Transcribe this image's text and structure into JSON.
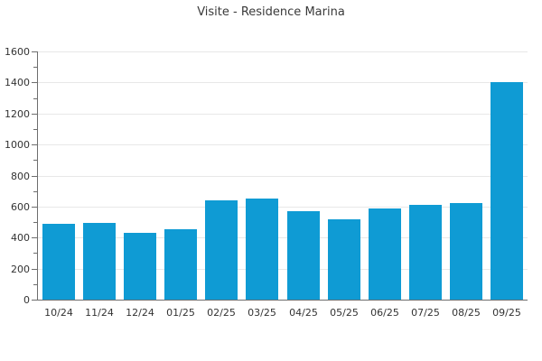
{
  "chart_data": {
    "type": "bar",
    "title": "Visite - Residence Marina",
    "categories": [
      "10/24",
      "11/24",
      "12/24",
      "01/25",
      "02/25",
      "03/25",
      "04/25",
      "05/25",
      "06/25",
      "07/25",
      "08/25",
      "09/25"
    ],
    "values": [
      490,
      495,
      430,
      455,
      640,
      650,
      570,
      515,
      590,
      610,
      625,
      1400
    ],
    "xlabel": "",
    "ylabel": "",
    "ylim": [
      0,
      1600
    ],
    "ytick_step": 200,
    "y_minor_tick_step": 100,
    "grid": "horizontal-major",
    "legend": "none",
    "bar_color": "#0f9bd4",
    "axis_color": "#6e6e6e",
    "grid_color": "#e8e8e8",
    "text_color": "#333333",
    "title_color": "#3a3a3a"
  }
}
